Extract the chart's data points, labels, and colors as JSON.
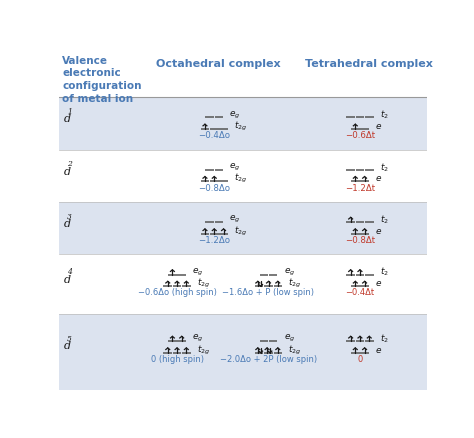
{
  "bg_blue": "#dce3ef",
  "bg_white": "#ffffff",
  "header_blue": "#4a7ab5",
  "label_blue": "#4a7ab5",
  "label_red": "#c0392b",
  "black": "#1a1a1a",
  "line_color": "#555555",
  "headers": {
    "col1": "Valence\nelectronic\nconfiguration\nof metal ion",
    "col2": "Octahedral complex",
    "col3": "Tetrahedral complex"
  },
  "rows": [
    {
      "d": "d",
      "d_sup": "1",
      "bg": "blue",
      "oct_high": {
        "eg": [
          0,
          0
        ],
        "t2g": [
          1,
          0,
          0
        ],
        "energy": "−0.4Δo"
      },
      "oct_low": null,
      "tet": {
        "t2": [
          0,
          0,
          0
        ],
        "e": [
          1,
          0
        ],
        "energy": "−0.6Δt"
      }
    },
    {
      "d": "d",
      "d_sup": "2",
      "bg": "white",
      "oct_high": {
        "eg": [
          0,
          0
        ],
        "t2g": [
          1,
          1,
          0
        ],
        "energy": "−0.8Δo"
      },
      "oct_low": null,
      "tet": {
        "t2": [
          0,
          0,
          0
        ],
        "e": [
          1,
          1
        ],
        "energy": "−1.2Δt"
      }
    },
    {
      "d": "d",
      "d_sup": "3",
      "bg": "blue",
      "oct_high": {
        "eg": [
          0,
          0
        ],
        "t2g": [
          1,
          1,
          1
        ],
        "energy": "−1.2Δo"
      },
      "oct_low": null,
      "tet": {
        "t2": [
          1,
          0,
          0
        ],
        "e": [
          1,
          1
        ],
        "energy": "−0.8Δt"
      }
    },
    {
      "d": "d",
      "d_sup": "4",
      "bg": "white",
      "oct_high": {
        "eg": [
          1,
          0
        ],
        "t2g": [
          1,
          1,
          1
        ],
        "energy": "−0.6Δo (high spin)"
      },
      "oct_low": {
        "eg": [
          0,
          0
        ],
        "t2g": [
          2,
          1,
          1
        ],
        "energy": "−1.6Δo + P (low spin)"
      },
      "tet": {
        "t2": [
          1,
          1,
          0
        ],
        "e": [
          1,
          1
        ],
        "energy": "−0.4Δt"
      }
    },
    {
      "d": "d",
      "d_sup": "5",
      "bg": "blue",
      "oct_high": {
        "eg": [
          1,
          1
        ],
        "t2g": [
          1,
          1,
          1
        ],
        "energy": "0 (high spin)"
      },
      "oct_low": {
        "eg": [
          0,
          0
        ],
        "t2g": [
          2,
          2,
          1
        ],
        "energy": "−2.0Δo + 2P (low spin)"
      },
      "tet": {
        "t2": [
          1,
          1,
          1
        ],
        "e": [
          1,
          1
        ],
        "energy": "0"
      }
    }
  ]
}
